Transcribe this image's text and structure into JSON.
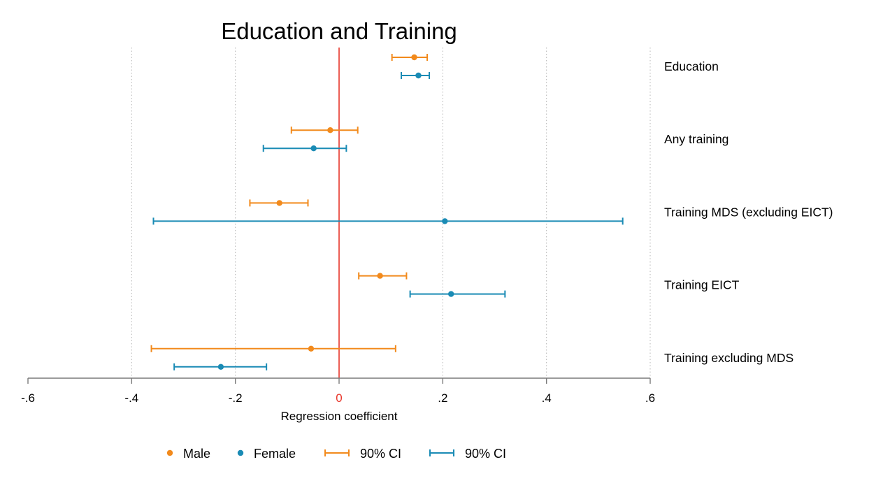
{
  "chart_data": {
    "type": "scatter",
    "subtype": "coefficient-plot",
    "title": "Education and Training",
    "xlabel": "Regression coefficient",
    "xlim": [
      -0.6,
      0.6
    ],
    "xticks": [
      {
        "value": -0.6,
        "label": "-.6"
      },
      {
        "value": -0.4,
        "label": "-.4"
      },
      {
        "value": -0.2,
        "label": "-.2"
      },
      {
        "value": 0,
        "label": "0"
      },
      {
        "value": 0.2,
        "label": ".2"
      },
      {
        "value": 0.4,
        "label": ".4"
      },
      {
        "value": 0.6,
        "label": ".6"
      }
    ],
    "grid": "vertical dotted",
    "reference_line": {
      "x": 0,
      "color": "#e8362b"
    },
    "categories": [
      "Education",
      "Any training",
      "Training MDS (excluding EICT)",
      "Training EICT",
      "Training excluding MDS"
    ],
    "series": [
      {
        "name": "Male",
        "ci_name": "90% CI",
        "color": "#f28a1c",
        "estimates": [
          0.145,
          -0.017,
          -0.115,
          0.079,
          -0.054
        ],
        "ci_low": [
          0.102,
          -0.092,
          -0.172,
          0.038,
          -0.362
        ],
        "ci_high": [
          0.17,
          0.036,
          -0.06,
          0.13,
          0.109
        ]
      },
      {
        "name": "Female",
        "ci_name": "90% CI",
        "color": "#1a8bb5",
        "estimates": [
          0.153,
          -0.049,
          0.204,
          0.216,
          -0.228
        ],
        "ci_low": [
          0.12,
          -0.146,
          -0.358,
          0.137,
          -0.318
        ],
        "ci_high": [
          0.174,
          0.014,
          0.547,
          0.32,
          -0.14
        ]
      }
    ],
    "legend": {
      "position": "bottom",
      "entries": [
        {
          "label": "Male",
          "marker": "dot",
          "series": 0
        },
        {
          "label": "Female",
          "marker": "dot",
          "series": 1
        },
        {
          "label": "90% CI",
          "marker": "capped-line",
          "series": 0
        },
        {
          "label": "90% CI",
          "marker": "capped-line",
          "series": 1
        }
      ]
    }
  }
}
